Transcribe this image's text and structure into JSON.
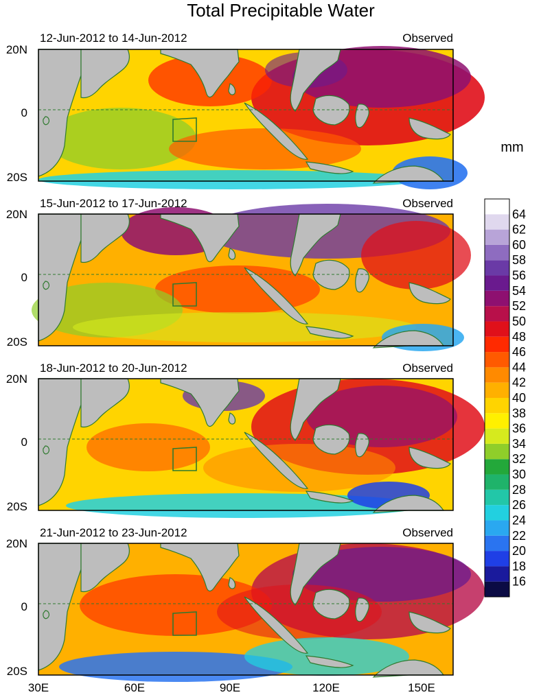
{
  "chart_data": {
    "type": "heatmap",
    "title": "Total Precipitable Water",
    "units": "mm",
    "x_ticks": [
      "30E",
      "60E",
      "90E",
      "120E",
      "150E"
    ],
    "x_tick_values": [
      30,
      60,
      90,
      120,
      150
    ],
    "xlim": [
      30,
      160
    ],
    "y_ticks": [
      "20N",
      "0",
      "20S"
    ],
    "y_tick_values": [
      20,
      0,
      -20
    ],
    "ylim": [
      -20,
      20
    ],
    "colorbar": {
      "labels": [
        "64",
        "62",
        "60",
        "58",
        "56",
        "54",
        "52",
        "50",
        "48",
        "46",
        "44",
        "42",
        "40",
        "38",
        "36",
        "34",
        "32",
        "30",
        "28",
        "26",
        "24",
        "22",
        "20",
        "18",
        "16"
      ],
      "min": 14,
      "max": 66,
      "colors": [
        "#0b0b44",
        "#1a1a9c",
        "#1f3fe6",
        "#2a74f0",
        "#2aa8f0",
        "#22d0e0",
        "#22c7a8",
        "#1fb36a",
        "#23a83a",
        "#8fce2a",
        "#d6ea1e",
        "#fff000",
        "#ffd400",
        "#ffb000",
        "#ff8a00",
        "#ff5a00",
        "#ff2a00",
        "#e0101a",
        "#b8104a",
        "#8e1070",
        "#6a1a8e",
        "#6a3aa6",
        "#8e6cc0",
        "#b8a4d8",
        "#e0d8ee",
        "#ffffff"
      ]
    },
    "panels": [
      {
        "dates": "12-Jun-2012 to 14-Jun-2012",
        "label": "Observed"
      },
      {
        "dates": "15-Jun-2012 to 17-Jun-2012",
        "label": "Observed"
      },
      {
        "dates": "18-Jun-2012 to 20-Jun-2012",
        "label": "Observed"
      },
      {
        "dates": "21-Jun-2012 to 23-Jun-2012",
        "label": "Observed"
      }
    ]
  }
}
